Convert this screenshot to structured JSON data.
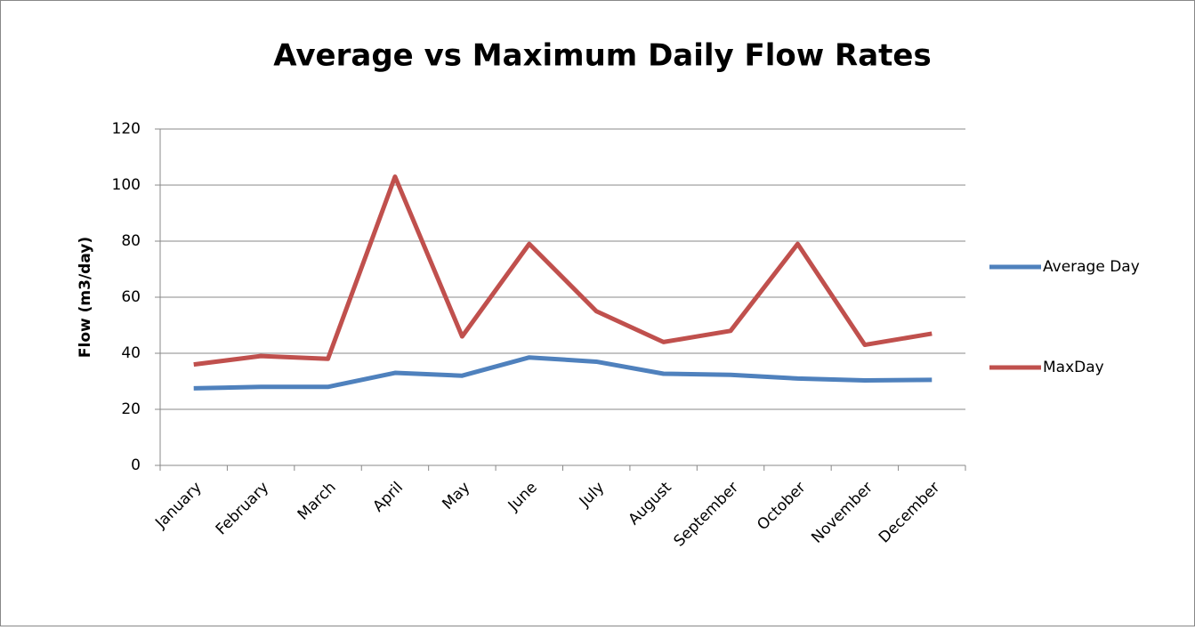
{
  "chart_data": {
    "type": "line",
    "title": "Average vs Maximum Daily Flow Rates",
    "y_label": "Flow (m3/day)",
    "categories": [
      "January",
      "February",
      "March",
      "April",
      "May",
      "June",
      "July",
      "August",
      "September",
      "October",
      "November",
      "December"
    ],
    "series": [
      {
        "name": "Average Day",
        "color": "#4f81bd",
        "values": [
          27.5,
          28,
          28,
          33,
          32,
          38.5,
          37,
          32.7,
          32.3,
          31,
          30.3,
          30.5
        ]
      },
      {
        "name": "MaxDay",
        "color": "#c0504d",
        "values": [
          36,
          39,
          38,
          103,
          46,
          79,
          55,
          44,
          48,
          79,
          43,
          47
        ]
      }
    ],
    "ylim": [
      0,
      120
    ],
    "yticks": [
      0,
      20,
      40,
      60,
      80,
      100,
      120
    ],
    "grid": true,
    "legend": "right"
  }
}
